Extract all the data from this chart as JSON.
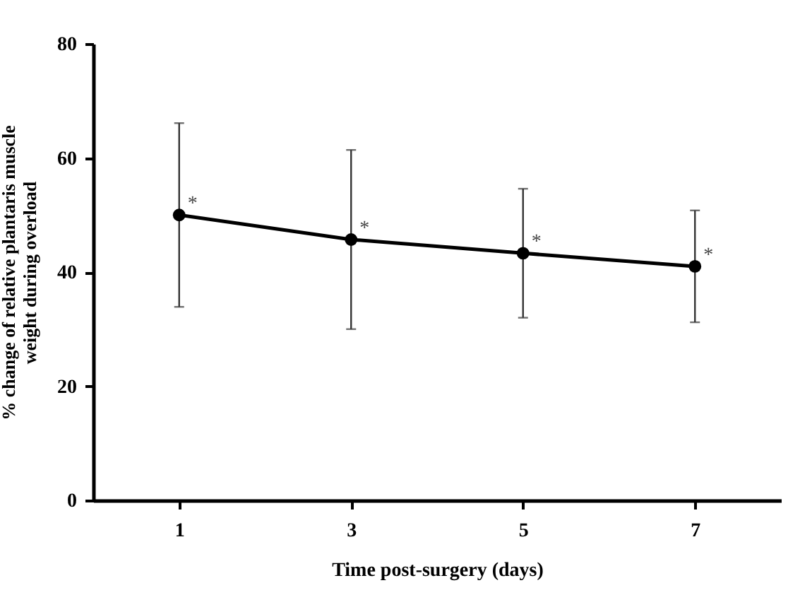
{
  "chart_data": {
    "type": "line",
    "xlabel": "Time post-surgery (days)",
    "ylabel": "% change of relative plantaris muscle\nweight during overload",
    "x": [
      1,
      3,
      5,
      7
    ],
    "series": [
      {
        "color": "#000000",
        "values": [
          50,
          45.7,
          43.3,
          41.0
        ],
        "errors": [
          16.1,
          15.7,
          11.3,
          9.8
        ]
      }
    ],
    "xlim": [
      0,
      8
    ],
    "xticks": [
      1,
      3,
      5,
      7
    ],
    "ylim": [
      0,
      80
    ],
    "yticks": [
      0,
      20,
      40,
      60,
      80
    ],
    "grid": false,
    "marker": "circle",
    "line_style": "solid",
    "annotations": [
      {
        "text": "*",
        "x": 1,
        "y": 50
      },
      {
        "text": "*",
        "x": 3,
        "y": 45.7
      },
      {
        "text": "*",
        "x": 5,
        "y": 43.3
      },
      {
        "text": "*",
        "x": 7,
        "y": 41.0
      }
    ]
  }
}
